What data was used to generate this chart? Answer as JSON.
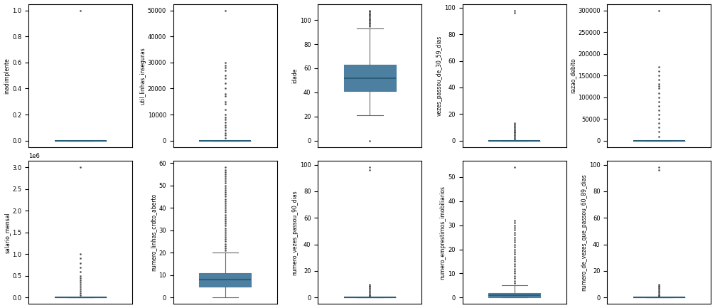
{
  "variables": [
    {
      "name": "inadimplente",
      "q1": 0.0,
      "median": 0.0,
      "q3": 0.0,
      "whisker_low": 0.0,
      "whisker_high": 0.0,
      "fliers": [
        1.0
      ],
      "yticks": [
        0.0,
        0.2,
        0.4,
        0.6,
        0.8,
        1.0
      ],
      "scale_label": null
    },
    {
      "name": "util_linhas_inseguras",
      "q1": 0.0,
      "median": 0.0,
      "q3": 0.0,
      "whisker_low": 0.0,
      "whisker_high": 0.0,
      "fliers": [
        1000,
        2000,
        3000,
        4000,
        5000,
        6000,
        7000,
        8000,
        9000,
        10000,
        12000,
        14000,
        15000,
        17000,
        18000,
        20000,
        22000,
        24000,
        25000,
        27000,
        28000,
        29000,
        30000,
        50000
      ],
      "yticks": [
        0,
        10000,
        20000,
        30000,
        40000,
        50000
      ],
      "scale_label": null
    },
    {
      "name": "idade",
      "q1": 41.0,
      "median": 52.0,
      "q3": 63.0,
      "whisker_low": 21.0,
      "whisker_high": 93.0,
      "fliers": [
        0,
        95,
        96,
        97,
        98,
        99,
        100,
        101,
        102,
        103,
        104,
        105,
        106,
        107,
        108
      ],
      "yticks": [
        0,
        20,
        40,
        60,
        80,
        100
      ],
      "scale_label": null
    },
    {
      "name": "vezes_passou_de_30_59_dias",
      "q1": 0.0,
      "median": 0.0,
      "q3": 0.0,
      "whisker_low": 0.0,
      "whisker_high": 0.0,
      "fliers": [
        1,
        2,
        3,
        4,
        5,
        6,
        7,
        8,
        9,
        10,
        11,
        12,
        13,
        96,
        98
      ],
      "yticks": [
        0,
        20,
        40,
        60,
        80,
        100
      ],
      "scale_label": null
    },
    {
      "name": "razao_debito",
      "q1": 0.0,
      "median": 0.0,
      "q3": 0.0,
      "whisker_low": 0.0,
      "whisker_high": 0.0,
      "fliers": [
        10000,
        20000,
        30000,
        40000,
        50000,
        60000,
        70000,
        80000,
        90000,
        100000,
        110000,
        120000,
        125000,
        130000,
        140000,
        150000,
        160000,
        170000,
        300000
      ],
      "yticks": [
        0,
        50000,
        100000,
        150000,
        200000,
        250000,
        300000
      ],
      "scale_label": null
    },
    {
      "name": "salario_mensal",
      "q1": 0.0,
      "median": 0.0,
      "q3": 0.0,
      "whisker_low": 0.0,
      "whisker_high": 0.0,
      "fliers": [
        50000,
        100000,
        150000,
        200000,
        250000,
        300000,
        350000,
        400000,
        450000,
        500000,
        600000,
        700000,
        800000,
        900000,
        1000000,
        3000000
      ],
      "yticks": [
        0,
        500000,
        1000000,
        1500000,
        2000000,
        2500000,
        3000000
      ],
      "scale_label": "1e6"
    },
    {
      "name": "numero_linhas_crdto_aberto",
      "q1": 5.0,
      "median": 8.0,
      "q3": 11.0,
      "whisker_low": 0.0,
      "whisker_high": 20.0,
      "fliers": [
        21,
        22,
        23,
        24,
        25,
        26,
        27,
        28,
        29,
        30,
        31,
        32,
        33,
        34,
        35,
        36,
        37,
        38,
        39,
        40,
        41,
        42,
        43,
        44,
        45,
        46,
        47,
        48,
        49,
        50,
        51,
        52,
        53,
        54,
        55,
        56,
        57,
        58
      ],
      "yticks": [
        0,
        10,
        20,
        30,
        40,
        50,
        60
      ],
      "scale_label": null
    },
    {
      "name": "numero_vezes_passou_90_dias",
      "q1": 0.0,
      "median": 0.0,
      "q3": 0.0,
      "whisker_low": 0.0,
      "whisker_high": 0.0,
      "fliers": [
        1,
        2,
        3,
        4,
        5,
        6,
        7,
        8,
        9,
        10,
        96,
        98
      ],
      "yticks": [
        0,
        20,
        40,
        60,
        80,
        100
      ],
      "scale_label": null
    },
    {
      "name": "numero_emprestimos_imobiliarios",
      "q1": 0.0,
      "median": 1.0,
      "q3": 2.0,
      "whisker_low": 0.0,
      "whisker_high": 5.0,
      "fliers": [
        6,
        7,
        8,
        9,
        10,
        11,
        12,
        13,
        14,
        15,
        16,
        17,
        18,
        19,
        20,
        21,
        22,
        23,
        24,
        25,
        26,
        27,
        28,
        29,
        30,
        31,
        32,
        54
      ],
      "yticks": [
        0,
        10,
        20,
        30,
        40,
        50
      ],
      "scale_label": null
    },
    {
      "name": "numero_de_vezes_que_passou_60_89_dias",
      "q1": 0.0,
      "median": 0.0,
      "q3": 0.0,
      "whisker_low": 0.0,
      "whisker_high": 0.0,
      "fliers": [
        1,
        2,
        3,
        4,
        5,
        6,
        7,
        8,
        9,
        10,
        96,
        98
      ],
      "yticks": [
        0,
        20,
        40,
        60,
        80,
        100
      ],
      "scale_label": null
    }
  ],
  "box_color": "#4c7fa0",
  "median_color": "#2a5f7a",
  "flier_marker": ".",
  "flier_size": 2,
  "flier_color": "#333333",
  "whisker_color": "#666666",
  "cap_color": "#666666",
  "figsize": [
    10.06,
    4.33
  ],
  "dpi": 100
}
